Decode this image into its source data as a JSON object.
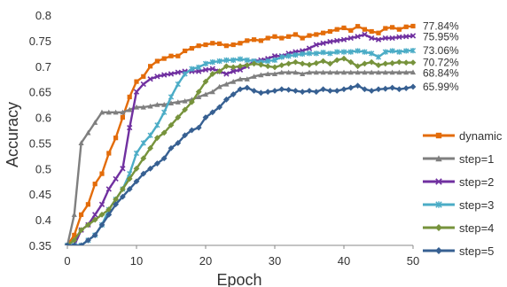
{
  "chart_data": {
    "type": "line",
    "xlabel": "Epoch",
    "ylabel": "Accuracy",
    "xlim": [
      0,
      50
    ],
    "ylim": [
      0.35,
      0.8
    ],
    "xticks": [
      0,
      10,
      20,
      30,
      40,
      50
    ],
    "yticks": [
      0.35,
      0.4,
      0.45,
      0.5,
      0.55,
      0.6,
      0.65,
      0.7,
      0.75,
      0.8
    ],
    "grid": false,
    "legend": "right",
    "series": [
      {
        "name": "dynamic",
        "color": "#e36c0a",
        "marker": "square",
        "end_label": "77.84%",
        "values": [
          0.35,
          0.37,
          0.41,
          0.43,
          0.47,
          0.49,
          0.53,
          0.56,
          0.6,
          0.64,
          0.67,
          0.68,
          0.7,
          0.71,
          0.715,
          0.72,
          0.72,
          0.73,
          0.735,
          0.74,
          0.742,
          0.745,
          0.744,
          0.74,
          0.742,
          0.745,
          0.75,
          0.752,
          0.75,
          0.755,
          0.758,
          0.755,
          0.758,
          0.762,
          0.755,
          0.76,
          0.762,
          0.765,
          0.768,
          0.772,
          0.775,
          0.77,
          0.778,
          0.772,
          0.768,
          0.765,
          0.774,
          0.776,
          0.772,
          0.777,
          0.7784
        ]
      },
      {
        "name": "step=1",
        "color": "#7f7f7f",
        "marker": "triangle",
        "end_label": "68.84%",
        "values": [
          0.35,
          0.41,
          0.55,
          0.57,
          0.59,
          0.61,
          0.61,
          0.61,
          0.61,
          0.615,
          0.62,
          0.62,
          0.622,
          0.625,
          0.625,
          0.628,
          0.63,
          0.632,
          0.635,
          0.64,
          0.645,
          0.65,
          0.66,
          0.665,
          0.67,
          0.675,
          0.675,
          0.68,
          0.683,
          0.685,
          0.685,
          0.688,
          0.688,
          0.688,
          0.685,
          0.688,
          0.688,
          0.688,
          0.688,
          0.688,
          0.688,
          0.688,
          0.688,
          0.688,
          0.688,
          0.688,
          0.688,
          0.688,
          0.688,
          0.688,
          0.6884
        ]
      },
      {
        "name": "step=2",
        "color": "#7030a0",
        "marker": "x",
        "end_label": "75.95%",
        "values": [
          0.35,
          0.35,
          0.38,
          0.39,
          0.41,
          0.43,
          0.46,
          0.48,
          0.5,
          0.58,
          0.65,
          0.665,
          0.675,
          0.68,
          0.683,
          0.685,
          0.688,
          0.69,
          0.69,
          0.69,
          0.693,
          0.695,
          0.69,
          0.685,
          0.69,
          0.693,
          0.7,
          0.71,
          0.712,
          0.715,
          0.72,
          0.72,
          0.725,
          0.728,
          0.73,
          0.735,
          0.742,
          0.745,
          0.748,
          0.75,
          0.752,
          0.755,
          0.758,
          0.762,
          0.755,
          0.752,
          0.755,
          0.755,
          0.757,
          0.758,
          0.7595
        ]
      },
      {
        "name": "step=3",
        "color": "#4bacc6",
        "marker": "star",
        "end_label": "73.06%",
        "values": [
          0.35,
          0.35,
          0.35,
          0.36,
          0.37,
          0.39,
          0.42,
          0.44,
          0.46,
          0.49,
          0.53,
          0.55,
          0.565,
          0.585,
          0.61,
          0.64,
          0.665,
          0.685,
          0.695,
          0.698,
          0.705,
          0.708,
          0.71,
          0.712,
          0.712,
          0.714,
          0.712,
          0.71,
          0.708,
          0.71,
          0.712,
          0.718,
          0.72,
          0.722,
          0.724,
          0.725,
          0.725,
          0.727,
          0.725,
          0.728,
          0.728,
          0.728,
          0.73,
          0.728,
          0.725,
          0.718,
          0.728,
          0.73,
          0.728,
          0.73,
          0.7306
        ]
      },
      {
        "name": "step=4",
        "color": "#77933c",
        "marker": "diamond",
        "end_label": "70.72%",
        "values": [
          0.35,
          0.36,
          0.38,
          0.39,
          0.4,
          0.41,
          0.42,
          0.44,
          0.46,
          0.48,
          0.5,
          0.52,
          0.54,
          0.56,
          0.57,
          0.585,
          0.6,
          0.615,
          0.63,
          0.65,
          0.67,
          0.685,
          0.69,
          0.7,
          0.698,
          0.7,
          0.702,
          0.705,
          0.703,
          0.7,
          0.698,
          0.702,
          0.705,
          0.708,
          0.705,
          0.703,
          0.706,
          0.71,
          0.705,
          0.712,
          0.715,
          0.708,
          0.7,
          0.705,
          0.708,
          0.702,
          0.705,
          0.706,
          0.708,
          0.707,
          0.7072
        ]
      },
      {
        "name": "step=5",
        "color": "#376092",
        "marker": "diamond",
        "end_label": "65.99%",
        "values": [
          0.35,
          0.35,
          0.35,
          0.36,
          0.37,
          0.39,
          0.41,
          0.43,
          0.445,
          0.46,
          0.475,
          0.49,
          0.5,
          0.51,
          0.52,
          0.54,
          0.55,
          0.565,
          0.575,
          0.58,
          0.6,
          0.61,
          0.62,
          0.635,
          0.645,
          0.655,
          0.658,
          0.652,
          0.648,
          0.65,
          0.652,
          0.655,
          0.654,
          0.652,
          0.65,
          0.652,
          0.65,
          0.655,
          0.652,
          0.652,
          0.655,
          0.658,
          0.662,
          0.655,
          0.652,
          0.655,
          0.656,
          0.658,
          0.655,
          0.657,
          0.6599
        ]
      }
    ]
  }
}
